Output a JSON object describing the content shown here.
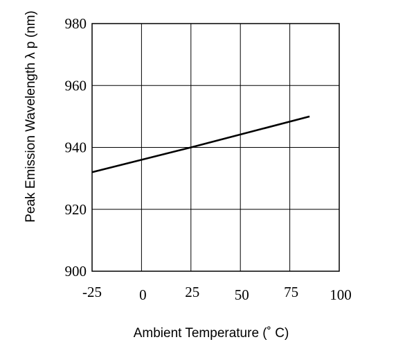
{
  "chart_data": {
    "type": "line",
    "title": "",
    "xlabel": "Ambient Temperature (˚ C)",
    "ylabel": "Peak Emission Wavelength  λ p (nm)",
    "xlim": [
      -25,
      100
    ],
    "ylim": [
      900,
      980
    ],
    "xticks": [
      "-25",
      "0",
      "25",
      "50",
      "75",
      "100"
    ],
    "yticks": [
      "900",
      "920",
      "940",
      "960",
      "980"
    ],
    "grid": true,
    "series": [
      {
        "x": [
          -25,
          25,
          85
        ],
        "y": [
          932,
          940,
          950
        ],
        "color": "#000000"
      }
    ]
  }
}
